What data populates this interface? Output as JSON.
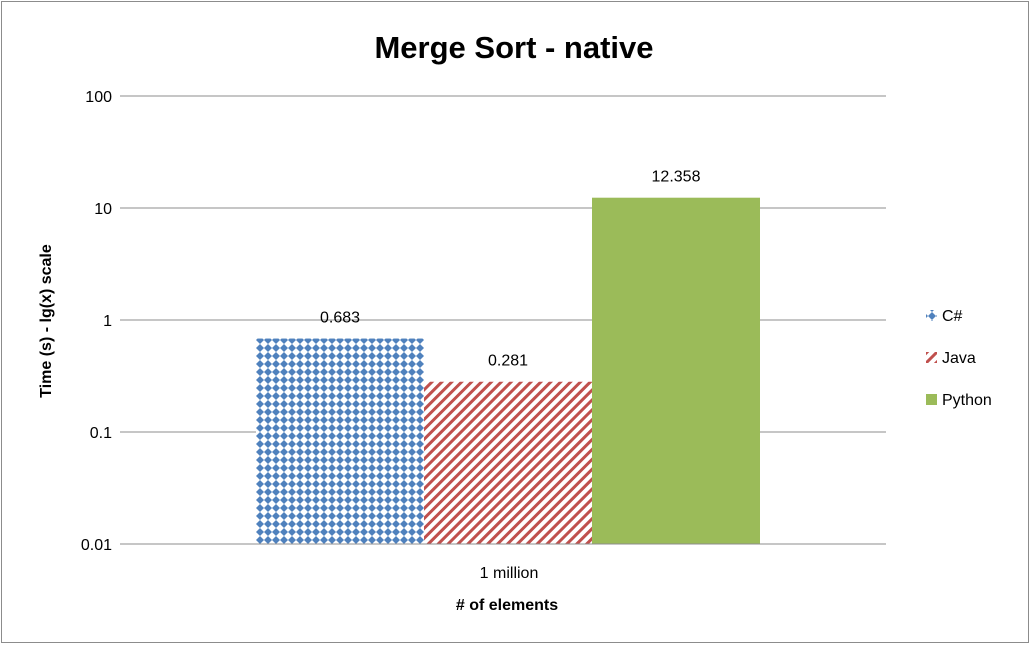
{
  "chart_data": {
    "type": "bar",
    "title": "Merge Sort - native",
    "xlabel": "# of elements",
    "ylabel": "Time (s) - lg(x)  scale",
    "y_scale": "log10",
    "ylim": [
      0.01,
      100
    ],
    "yticks": [
      "0.01",
      "0.1",
      "1",
      "10",
      "100"
    ],
    "grid": true,
    "legend_position": "right",
    "categories": [
      "1 million"
    ],
    "series": [
      {
        "name": "C#",
        "values": [
          0.683
        ],
        "label": "0.683",
        "color": "#4f81bd",
        "pattern": "diamond-dots"
      },
      {
        "name": "Java",
        "values": [
          0.281
        ],
        "label": "0.281",
        "color": "#c0504d",
        "pattern": "diagonal-stripes"
      },
      {
        "name": "Python",
        "values": [
          12.358
        ],
        "label": "12.358",
        "color": "#9bbb59",
        "pattern": "solid"
      }
    ]
  }
}
